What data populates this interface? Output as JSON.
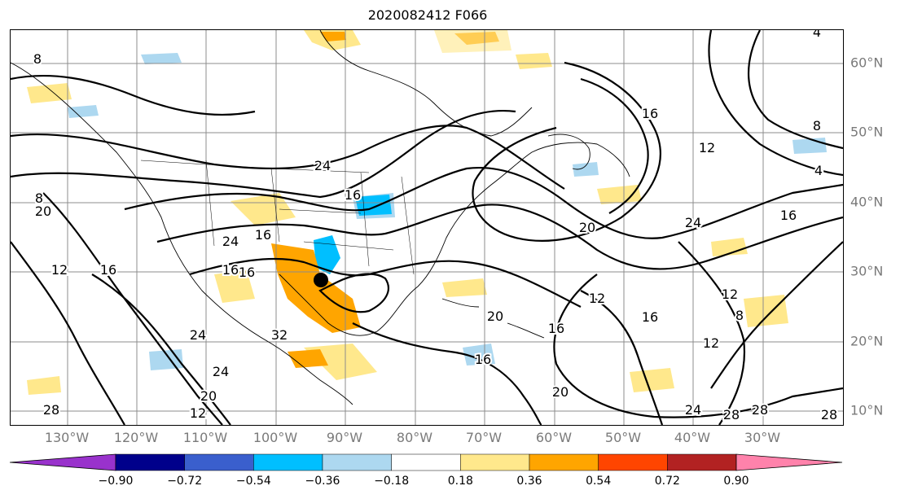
{
  "title": "2020082412 F066",
  "lon_labels": [
    "130°W",
    "120°W",
    "110°W",
    "100°W",
    "90°W",
    "80°W",
    "70°W",
    "60°W",
    "50°W",
    "40°W",
    "30°W"
  ],
  "lat_labels": [
    "60°N",
    "50°N",
    "40°N",
    "30°N",
    "20°N",
    "10°N"
  ],
  "contour_labels": [
    "24",
    "16",
    "8",
    "12",
    "20",
    "28",
    "4",
    "32"
  ],
  "colorbar": {
    "colors": [
      "#9932cc",
      "#00008b",
      "#3a5fcd",
      "#00bfff",
      "#add8f0",
      "#ffffff",
      "#ffe88c",
      "#ffa500",
      "#ff4500",
      "#b22222",
      "#ff82ab"
    ],
    "labels": [
      "−0.90",
      "−0.72",
      "−0.54",
      "−0.36",
      "−0.18",
      "0.18",
      "0.36",
      "0.54",
      "0.72",
      "0.90"
    ]
  },
  "colors": {
    "grid": "#8c8c8c",
    "contour": "#000000",
    "coast": "#000000",
    "tick_label": "#7a7a7a"
  },
  "icons": {
    "marker": "filled-circle-marker"
  }
}
